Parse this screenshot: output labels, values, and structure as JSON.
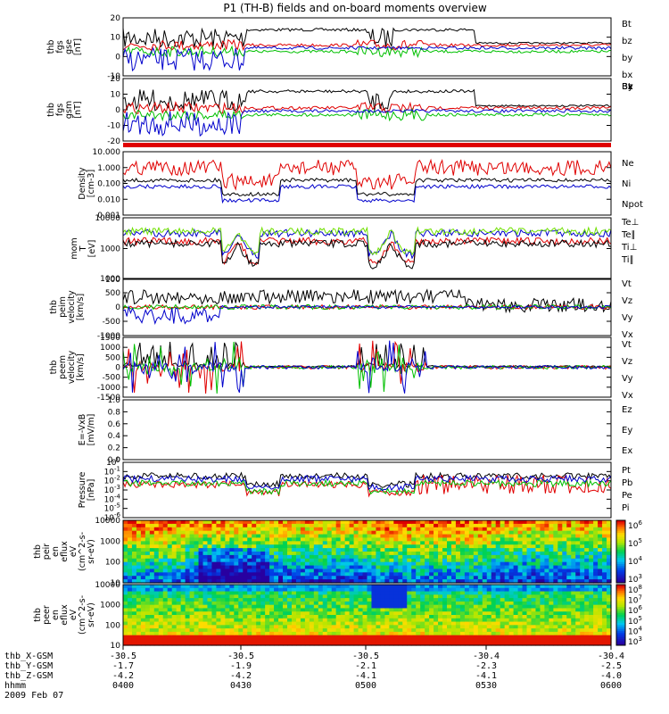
{
  "title": "P1 (TH-B) fields and on-board moments overview",
  "colors": {
    "black": "#000000",
    "red": "#e00000",
    "green": "#00c000",
    "blue": "#0000cc",
    "lightgreen": "#70e000"
  },
  "chart_data": {
    "type": "line",
    "date": "2009 Feb 07",
    "time_range": [
      "0400",
      "0600"
    ],
    "panels": [
      {
        "id": "fgs_gse",
        "ylabel": [
          "thb",
          "fgs",
          "gse",
          "[nT]"
        ],
        "ticks": [
          "20",
          "10",
          "0",
          "-10"
        ],
        "ylim": [
          -20,
          22
        ],
        "series": [
          {
            "name": "Bt",
            "color": "#000000"
          },
          {
            "name": "bz",
            "color": "#e00000"
          },
          {
            "name": "by",
            "color": "#00c000"
          },
          {
            "name": "bx",
            "color": "#0000cc"
          }
        ]
      },
      {
        "id": "fgs_gsm",
        "ylabel": [
          "thb",
          "fgs",
          "gsm",
          "[nT]"
        ],
        "ticks": [
          "20",
          "10",
          "0",
          "-10",
          "-20"
        ],
        "ylim": [
          -26,
          22
        ],
        "series": [
          {
            "name": "Bt",
            "color": "#000000"
          },
          {
            "name": "Bz",
            "color": "#e00000"
          },
          {
            "name": "By",
            "color": "#00c000"
          },
          {
            "name": "Bx",
            "color": "#0000cc"
          }
        ]
      },
      {
        "id": "density",
        "ylabel": [
          "Density",
          "[cm-3]"
        ],
        "ticks": [
          "10.000",
          "1.000",
          "0.100",
          "0.010",
          "0.001"
        ],
        "log": true,
        "series": [
          {
            "name": "Ne",
            "color": "#e00000"
          },
          {
            "name": "Ni",
            "color": "#000000"
          },
          {
            "name": "Npot",
            "color": "#0000cc"
          }
        ]
      },
      {
        "id": "temperature",
        "ylabel": [
          "mom",
          "T",
          "[eV]"
        ],
        "ticks": [
          "10000",
          "1000",
          "100"
        ],
        "log": true,
        "series": [
          {
            "name": "Te⊥",
            "color": "#e00000"
          },
          {
            "name": "Te∥",
            "color": "#000000"
          },
          {
            "name": "Ti⊥",
            "color": "#0000cc"
          },
          {
            "name": "Ti∥",
            "color": "#70e000"
          }
        ]
      },
      {
        "id": "peim_velocity",
        "ylabel": [
          "thb",
          "peim",
          "velocity",
          "[km/s]"
        ],
        "ticks": [
          "1000",
          "500",
          "0",
          "-500",
          "-1000"
        ],
        "ylim": [
          -1000,
          1000
        ],
        "series": [
          {
            "name": "Vt",
            "color": "#000000"
          },
          {
            "name": "Vz",
            "color": "#e00000"
          },
          {
            "name": "Vy",
            "color": "#00c000"
          },
          {
            "name": "Vx",
            "color": "#0000cc"
          }
        ]
      },
      {
        "id": "peem_velocity",
        "ylabel": [
          "thb",
          "peem",
          "velocity",
          "[km/s]"
        ],
        "ticks": [
          "1500",
          "1000",
          "500",
          "0",
          "-500",
          "-1000",
          "-1500"
        ],
        "ylim": [
          -1500,
          1500
        ],
        "series": [
          {
            "name": "Vt",
            "color": "#000000"
          },
          {
            "name": "Vz",
            "color": "#e00000"
          },
          {
            "name": "Vy",
            "color": "#00c000"
          },
          {
            "name": "Vx",
            "color": "#0000cc"
          }
        ]
      },
      {
        "id": "efield",
        "ylabel": [
          "E=-VxB",
          "[mV/m]"
        ],
        "ticks": [
          "1.0",
          "0.8",
          "0.6",
          "0.4",
          "0.2",
          "0.0"
        ],
        "ylim": [
          0,
          1
        ],
        "series": [
          {
            "name": "Ez",
            "color": "#e00000"
          },
          {
            "name": "Ey",
            "color": "#00c000"
          },
          {
            "name": "Ex",
            "color": "#0000cc"
          }
        ]
      },
      {
        "id": "pressure",
        "ylabel": [
          "Pressure",
          "[nPa]"
        ],
        "ticks": [
          "10^0",
          "10^-1",
          "10^-2",
          "10^-3",
          "10^-4",
          "10^-5",
          "10^-6"
        ],
        "log": true,
        "series": [
          {
            "name": "Pt",
            "color": "#000000"
          },
          {
            "name": "Pb",
            "color": "#e00000"
          },
          {
            "name": "Pe",
            "color": "#00c000"
          },
          {
            "name": "Pi",
            "color": "#0000cc"
          }
        ]
      },
      {
        "id": "peir_spec",
        "type": "heatmap",
        "ylabel": [
          "thb",
          "peir",
          "en",
          "eflux",
          "eV",
          "(cm^2-s-",
          "sr-eV)"
        ],
        "ticks": [
          "10000",
          "1000",
          "100",
          "10"
        ],
        "colorbar_ticks": [
          "10^6",
          "10^5",
          "10^4",
          "10^3"
        ]
      },
      {
        "id": "peer_spec",
        "type": "heatmap",
        "ylabel": [
          "thb",
          "peer",
          "en",
          "eflux",
          "eV",
          "(cm^2-s-",
          "sr-eV)"
        ],
        "ticks": [
          "10000",
          "1000",
          "100",
          "10"
        ],
        "colorbar_ticks": [
          "10^8",
          "10^7",
          "10^6",
          "10^5",
          "10^4",
          "10^3"
        ]
      }
    ],
    "x_axis": {
      "tick_times": [
        "0400",
        "0430",
        "0500",
        "0530",
        "0600"
      ],
      "rows": [
        {
          "label": "thb_X-GSM",
          "values": [
            "-30.5",
            "-30.5",
            "-30.5",
            "-30.4",
            "-30.4"
          ]
        },
        {
          "label": "thb_Y-GSM",
          "values": [
            "-1.7",
            "-1.9",
            "-2.1",
            "-2.3",
            "-2.5"
          ]
        },
        {
          "label": "thb_Z-GSM",
          "values": [
            "-4.2",
            "-4.2",
            "-4.1",
            "-4.1",
            "-4.0"
          ]
        },
        {
          "label": "hhmm",
          "values": [
            "0400",
            "0430",
            "0500",
            "0530",
            "0600"
          ]
        }
      ]
    }
  }
}
